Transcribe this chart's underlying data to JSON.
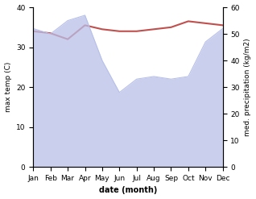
{
  "months": [
    "Jan",
    "Feb",
    "Mar",
    "Apr",
    "May",
    "Jun",
    "Jul",
    "Aug",
    "Sep",
    "Oct",
    "Nov",
    "Dec"
  ],
  "month_positions": [
    1,
    2,
    3,
    4,
    5,
    6,
    7,
    8,
    9,
    10,
    11,
    12
  ],
  "max_temp": [
    34.0,
    33.5,
    32.0,
    35.5,
    34.5,
    34.0,
    34.0,
    34.5,
    35.0,
    36.5,
    36.0,
    35.5
  ],
  "precipitation": [
    52.0,
    50.0,
    55.0,
    57.0,
    40.0,
    28.0,
    33.0,
    34.0,
    33.0,
    34.0,
    47.0,
    52.0
  ],
  "temp_color": "#c0504d",
  "precip_fill_color": "#b8c0e8",
  "ylabel_left": "max temp (C)",
  "ylabel_right": "med. precipitation (kg/m2)",
  "xlabel": "date (month)",
  "ylim_left": [
    0,
    40
  ],
  "ylim_right": [
    0,
    60
  ],
  "yticks_left": [
    0,
    10,
    20,
    30,
    40
  ],
  "yticks_right": [
    0,
    10,
    20,
    30,
    40,
    50,
    60
  ],
  "bg_color": "#ffffff",
  "temp_linewidth": 1.5
}
